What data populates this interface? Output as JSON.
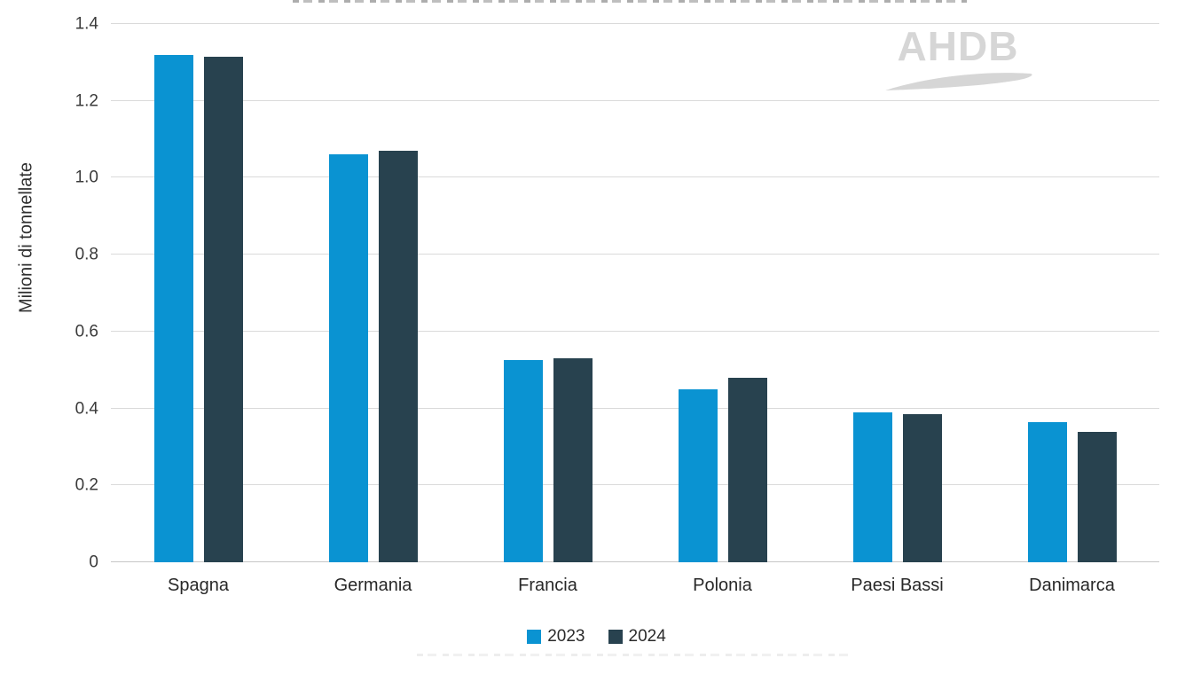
{
  "chart_data": {
    "type": "bar",
    "categories": [
      "Spagna",
      "Germania",
      "Francia",
      "Polonia",
      "Paesi Bassi",
      "Danimarca"
    ],
    "series": [
      {
        "name": "2023",
        "color": "#0a93d2",
        "values": [
          1.32,
          1.06,
          0.525,
          0.45,
          0.39,
          0.365
        ]
      },
      {
        "name": "2024",
        "color": "#28424f",
        "values": [
          1.315,
          1.07,
          0.53,
          0.48,
          0.385,
          0.34
        ]
      }
    ],
    "xlabel": "",
    "ylabel": "Milioni di tonnellate",
    "ylim": [
      0,
      1.4
    ],
    "yticks": [
      {
        "label": "0",
        "value": 0
      },
      {
        "label": "0.2",
        "value": 0.2
      },
      {
        "label": "0.4",
        "value": 0.4
      },
      {
        "label": "0.6",
        "value": 0.6
      },
      {
        "label": "0.8",
        "value": 0.8
      },
      {
        "label": "1.0",
        "value": 1.0
      },
      {
        "label": "1.2",
        "value": 1.2
      },
      {
        "label": "1.4",
        "value": 1.4
      }
    ],
    "grid": true,
    "legend_position": "bottom"
  },
  "watermark": {
    "text": "AHDB"
  },
  "colors": {
    "series_2023": "#0a93d2",
    "series_2024": "#28424f",
    "gridline": "#dadada",
    "axis_text": "#3a3a3a",
    "watermark": "#d6d6d6",
    "background": "#ffffff"
  }
}
